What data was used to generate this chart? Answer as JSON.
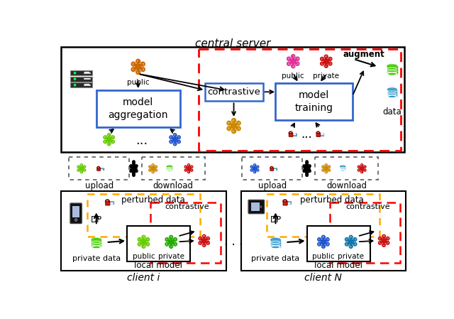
{
  "title": "central server",
  "client_i_label": "client i",
  "client_n_label": "client N",
  "bg_color": "#ffffff",
  "orange_node_color": "#cc6600",
  "pink_node_color": "#dd3399",
  "darkred_node_color": "#cc1111",
  "green_node_color": "#66cc00",
  "blue_node_color": "#2255cc",
  "yellow_node_color": "#cc8800",
  "green2_node_color": "#22aa00",
  "cyan_db_color": "#3399cc",
  "green_db_color": "#44cc00",
  "red_dash_color": "#ff0000",
  "orange_dash_color": "#ffaa00",
  "gray_dash_color": "#666666",
  "blue_box_color": "#3366cc",
  "black_color": "#000000"
}
